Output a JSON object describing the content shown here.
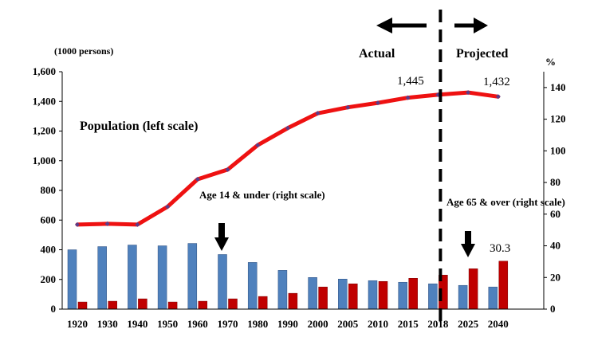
{
  "chart_data": {
    "type": "bar+line",
    "left_unit": "(1000 persons)",
    "right_unit": "%",
    "categories": [
      "1920",
      "1930",
      "1940",
      "1950",
      "1960",
      "1970",
      "1980",
      "1990",
      "2000",
      "2005",
      "2010",
      "2015",
      "2018",
      "2025",
      "2040"
    ],
    "left_axis": {
      "ylim": [
        0,
        1600
      ],
      "ticks": [
        "0",
        "200",
        "400",
        "600",
        "800",
        "1,000",
        "1,200",
        "1,400",
        "1,600"
      ]
    },
    "right_axis": {
      "ylim": [
        0,
        150
      ],
      "ticks": [
        "0",
        "20",
        "40",
        "60",
        "80",
        "100",
        "120",
        "140"
      ]
    },
    "series": [
      {
        "name": "Population (left scale)",
        "kind": "line",
        "axis": "left",
        "color": "#ee1111",
        "values": [
          570,
          575,
          570,
          690,
          875,
          940,
          1105,
          1220,
          1320,
          1360,
          1390,
          1425,
          1445,
          1460,
          1432
        ]
      },
      {
        "name": "Age 14 & under (right scale)",
        "kind": "bar",
        "axis": "right",
        "color": "#4f81bd",
        "values": [
          37.5,
          39.5,
          40.5,
          40,
          41.5,
          34.5,
          29.5,
          24.5,
          20,
          19,
          18,
          17,
          16,
          15,
          14
        ]
      },
      {
        "name": "Age 65 & over (right scale)",
        "kind": "bar",
        "axis": "right",
        "color": "#c00000",
        "values": [
          4.5,
          5,
          6.5,
          4.5,
          5,
          6.5,
          8,
          10,
          14,
          16,
          17.5,
          19.5,
          21.5,
          25.5,
          30.3
        ]
      }
    ],
    "annotations": {
      "actual": "Actual",
      "projected": "Projected",
      "pop_2018": "1,445",
      "pop_2040": "1,432",
      "age65_2040": "30.3"
    },
    "divider_category": "2018"
  }
}
